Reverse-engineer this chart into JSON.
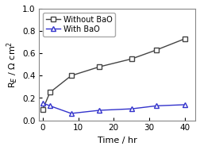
{
  "without_bao_x": [
    0,
    2,
    8,
    16,
    25,
    32,
    40
  ],
  "without_bao_y": [
    0.1,
    0.25,
    0.4,
    0.48,
    0.55,
    0.63,
    0.73
  ],
  "with_bao_x": [
    0,
    2,
    8,
    16,
    25,
    32,
    40
  ],
  "with_bao_y": [
    0.155,
    0.13,
    0.062,
    0.09,
    0.103,
    0.13,
    0.14
  ],
  "xlabel": "Time / hr",
  "ylabel": "R$_{E}$ / Ω cm$^{2}$",
  "xlim": [
    -1,
    43
  ],
  "ylim": [
    0.0,
    1.0
  ],
  "xticks": [
    0,
    10,
    20,
    30,
    40
  ],
  "yticks": [
    0.0,
    0.2,
    0.4,
    0.6,
    0.8,
    1.0
  ],
  "legend_without": "Without BaO",
  "legend_with": "With BaO",
  "color_without": "#444444",
  "color_with": "#3333cc",
  "bg_color": "#ffffff"
}
